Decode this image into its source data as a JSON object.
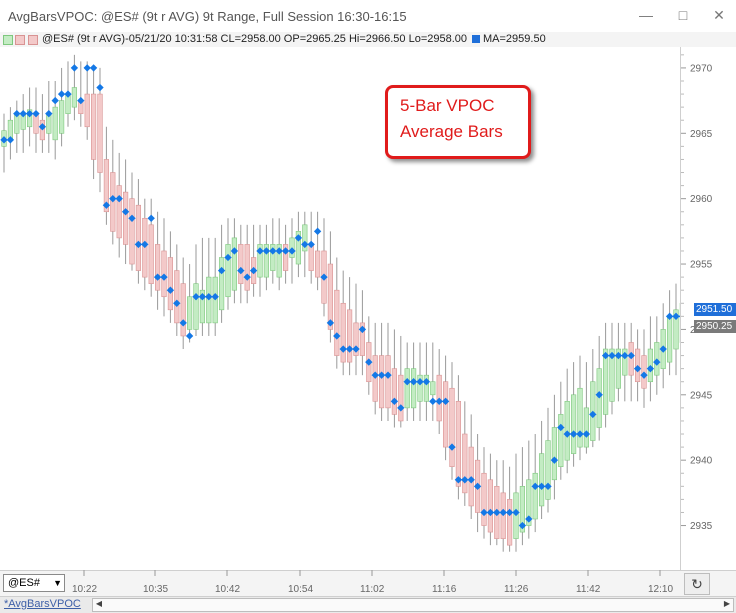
{
  "window": {
    "title": "AvgBarsVPOC: @ES# (9t r AVG) 9t Range, Full Session 16:30-16:15",
    "minimize_glyph": "—",
    "maximize_glyph": "□",
    "close_glyph": "✕"
  },
  "infobar": {
    "text": "@ES# (9t r AVG)-05/21/20 10:31:58 CL=2958.00 OP=2965.25 Hi=2966.50 Lo=2958.00",
    "ma_text": "MA=2959.50",
    "ma_color": "#1f6fd9"
  },
  "callout": {
    "line1": "5-Bar VPOC",
    "line2": "Average Bars",
    "color": "#e01b1b"
  },
  "price_labels": {
    "upper": "2951.50",
    "lower": "2950.25"
  },
  "bottom": {
    "symbol": "@ES#",
    "tab": "*AvgBarsVPOC",
    "refresh_glyph": "↻"
  },
  "colors": {
    "up_fill": "#c3ecc3",
    "up_border": "#7ec87e",
    "down_fill": "#f3c9c9",
    "down_border": "#d99393",
    "wick": "#999999",
    "vpoc": "#1478e6"
  },
  "chart_data": {
    "type": "candlestick",
    "title": "",
    "y_ticks": [
      2935,
      2940,
      2945,
      2950,
      2955,
      2960,
      2965,
      2970
    ],
    "ylim": [
      2931.6,
      2971.6
    ],
    "x_ticks": [
      "10:22",
      "10:35",
      "10:42",
      "10:54",
      "11:02",
      "11:16",
      "11:26",
      "11:42",
      "12:10"
    ],
    "bars": [
      {
        "o": 2964.0,
        "c": 2965.2,
        "h": 2966.5,
        "l": 2962.0,
        "v": 2964.5
      },
      {
        "o": 2964.5,
        "c": 2966.0,
        "h": 2967.0,
        "l": 2963.0,
        "v": 2964.5
      },
      {
        "o": 2965.0,
        "c": 2966.5,
        "h": 2967.5,
        "l": 2963.5,
        "v": 2966.5
      },
      {
        "o": 2965.3,
        "c": 2966.5,
        "h": 2968.0,
        "l": 2963.5,
        "v": 2966.5
      },
      {
        "o": 2965.5,
        "c": 2966.8,
        "h": 2968.5,
        "l": 2964.0,
        "v": 2966.5
      },
      {
        "o": 2966.5,
        "c": 2965.0,
        "h": 2968.5,
        "l": 2963.5,
        "v": 2966.5
      },
      {
        "o": 2966.0,
        "c": 2964.5,
        "h": 2968.0,
        "l": 2963.5,
        "v": 2965.5
      },
      {
        "o": 2965.0,
        "c": 2966.5,
        "h": 2969.0,
        "l": 2963.5,
        "v": 2966.5
      },
      {
        "o": 2964.5,
        "c": 2967.0,
        "h": 2969.0,
        "l": 2963.0,
        "v": 2967.5
      },
      {
        "o": 2965.0,
        "c": 2967.5,
        "h": 2970.0,
        "l": 2964.0,
        "v": 2968.0
      },
      {
        "o": 2966.5,
        "c": 2968.0,
        "h": 2970.5,
        "l": 2965.5,
        "v": 2968.0
      },
      {
        "o": 2967.0,
        "c": 2968.5,
        "h": 2971.0,
        "l": 2966.0,
        "v": 2970.0
      },
      {
        "o": 2967.5,
        "c": 2966.5,
        "h": 2970.5,
        "l": 2965.5,
        "v": 2967.5
      },
      {
        "o": 2968.0,
        "c": 2965.5,
        "h": 2970.5,
        "l": 2964.5,
        "v": 2970.0
      },
      {
        "o": 2968.0,
        "c": 2963.0,
        "h": 2970.0,
        "l": 2961.5,
        "v": 2970.0
      },
      {
        "o": 2968.0,
        "c": 2962.0,
        "h": 2970.0,
        "l": 2960.5,
        "v": 2968.5
      },
      {
        "o": 2963.0,
        "c": 2959.0,
        "h": 2965.5,
        "l": 2958.0,
        "v": 2959.5
      },
      {
        "o": 2962.0,
        "c": 2957.5,
        "h": 2964.5,
        "l": 2956.5,
        "v": 2960.0
      },
      {
        "o": 2961.0,
        "c": 2957.0,
        "h": 2963.5,
        "l": 2955.5,
        "v": 2960.0
      },
      {
        "o": 2960.5,
        "c": 2956.5,
        "h": 2963.0,
        "l": 2955.0,
        "v": 2959.0
      },
      {
        "o": 2960.0,
        "c": 2955.0,
        "h": 2962.0,
        "l": 2954.5,
        "v": 2958.5
      },
      {
        "o": 2959.5,
        "c": 2954.5,
        "h": 2961.5,
        "l": 2953.5,
        "v": 2956.5
      },
      {
        "o": 2958.5,
        "c": 2954.0,
        "h": 2960.0,
        "l": 2953.0,
        "v": 2956.5
      },
      {
        "o": 2958.0,
        "c": 2953.5,
        "h": 2960.0,
        "l": 2952.5,
        "v": 2958.5
      },
      {
        "o": 2956.5,
        "c": 2953.0,
        "h": 2959.0,
        "l": 2951.5,
        "v": 2954.0
      },
      {
        "o": 2956.0,
        "c": 2952.5,
        "h": 2958.5,
        "l": 2951.0,
        "v": 2954.0
      },
      {
        "o": 2955.5,
        "c": 2951.5,
        "h": 2957.5,
        "l": 2950.5,
        "v": 2953.0
      },
      {
        "o": 2954.5,
        "c": 2950.5,
        "h": 2956.5,
        "l": 2949.5,
        "v": 2952.0
      },
      {
        "o": 2953.5,
        "c": 2949.5,
        "h": 2955.5,
        "l": 2948.5,
        "v": 2950.5
      },
      {
        "o": 2950.0,
        "c": 2952.5,
        "h": 2955.0,
        "l": 2949.0,
        "v": 2949.5
      },
      {
        "o": 2950.0,
        "c": 2953.5,
        "h": 2956.5,
        "l": 2949.5,
        "v": 2952.5
      },
      {
        "o": 2950.5,
        "c": 2953.0,
        "h": 2957.0,
        "l": 2949.5,
        "v": 2952.5
      },
      {
        "o": 2950.5,
        "c": 2954.0,
        "h": 2957.0,
        "l": 2949.5,
        "v": 2952.5
      },
      {
        "o": 2950.5,
        "c": 2954.0,
        "h": 2957.0,
        "l": 2949.5,
        "v": 2952.5
      },
      {
        "o": 2951.5,
        "c": 2955.5,
        "h": 2958.0,
        "l": 2950.5,
        "v": 2954.5
      },
      {
        "o": 2952.5,
        "c": 2956.5,
        "h": 2958.5,
        "l": 2951.5,
        "v": 2955.5
      },
      {
        "o": 2953.0,
        "c": 2957.0,
        "h": 2958.5,
        "l": 2952.0,
        "v": 2956.0
      },
      {
        "o": 2956.5,
        "c": 2953.5,
        "h": 2958.0,
        "l": 2952.0,
        "v": 2954.5
      },
      {
        "o": 2956.5,
        "c": 2953.0,
        "h": 2958.0,
        "l": 2952.0,
        "v": 2954.0
      },
      {
        "o": 2955.5,
        "c": 2953.5,
        "h": 2958.0,
        "l": 2952.5,
        "v": 2954.5
      },
      {
        "o": 2954.0,
        "c": 2956.5,
        "h": 2958.0,
        "l": 2952.5,
        "v": 2956.0
      },
      {
        "o": 2954.0,
        "c": 2956.5,
        "h": 2958.0,
        "l": 2953.0,
        "v": 2956.0
      },
      {
        "o": 2954.5,
        "c": 2956.5,
        "h": 2958.5,
        "l": 2953.5,
        "v": 2956.0
      },
      {
        "o": 2954.0,
        "c": 2956.5,
        "h": 2958.5,
        "l": 2953.0,
        "v": 2956.0
      },
      {
        "o": 2956.5,
        "c": 2954.5,
        "h": 2958.0,
        "l": 2953.5,
        "v": 2956.0
      },
      {
        "o": 2955.5,
        "c": 2957.0,
        "h": 2958.5,
        "l": 2953.5,
        "v": 2956.0
      },
      {
        "o": 2955.0,
        "c": 2957.5,
        "h": 2959.0,
        "l": 2954.0,
        "v": 2957.0
      },
      {
        "o": 2956.0,
        "c": 2958.0,
        "h": 2959.0,
        "l": 2954.0,
        "v": 2956.5
      },
      {
        "o": 2956.5,
        "c": 2954.5,
        "h": 2959.0,
        "l": 2953.5,
        "v": 2956.5
      },
      {
        "o": 2956.0,
        "c": 2954.0,
        "h": 2959.0,
        "l": 2953.0,
        "v": 2957.5
      },
      {
        "o": 2956.0,
        "c": 2952.0,
        "h": 2958.5,
        "l": 2951.0,
        "v": 2954.0
      },
      {
        "o": 2955.0,
        "c": 2950.0,
        "h": 2957.5,
        "l": 2949.0,
        "v": 2950.5
      },
      {
        "o": 2953.0,
        "c": 2948.0,
        "h": 2955.5,
        "l": 2947.0,
        "v": 2949.5
      },
      {
        "o": 2952.0,
        "c": 2947.5,
        "h": 2954.5,
        "l": 2946.5,
        "v": 2948.5
      },
      {
        "o": 2951.5,
        "c": 2947.5,
        "h": 2954.0,
        "l": 2946.5,
        "v": 2948.5
      },
      {
        "o": 2950.5,
        "c": 2948.0,
        "h": 2953.5,
        "l": 2946.5,
        "v": 2948.5
      },
      {
        "o": 2950.5,
        "c": 2948.0,
        "h": 2953.0,
        "l": 2946.5,
        "v": 2950.0
      },
      {
        "o": 2949.0,
        "c": 2946.0,
        "h": 2951.0,
        "l": 2945.0,
        "v": 2947.5
      },
      {
        "o": 2948.0,
        "c": 2944.5,
        "h": 2950.5,
        "l": 2943.5,
        "v": 2946.5
      },
      {
        "o": 2948.0,
        "c": 2944.0,
        "h": 2950.5,
        "l": 2943.0,
        "v": 2946.5
      },
      {
        "o": 2948.0,
        "c": 2944.0,
        "h": 2950.5,
        "l": 2943.0,
        "v": 2946.5
      },
      {
        "o": 2947.0,
        "c": 2943.5,
        "h": 2950.0,
        "l": 2942.5,
        "v": 2944.5
      },
      {
        "o": 2946.5,
        "c": 2943.0,
        "h": 2949.5,
        "l": 2942.5,
        "v": 2944.0
      },
      {
        "o": 2944.0,
        "c": 2947.0,
        "h": 2949.0,
        "l": 2943.0,
        "v": 2946.0
      },
      {
        "o": 2944.0,
        "c": 2947.0,
        "h": 2949.0,
        "l": 2943.0,
        "v": 2946.0
      },
      {
        "o": 2944.5,
        "c": 2946.5,
        "h": 2949.0,
        "l": 2943.0,
        "v": 2946.0
      },
      {
        "o": 2944.5,
        "c": 2946.5,
        "h": 2949.0,
        "l": 2943.0,
        "v": 2946.0
      },
      {
        "o": 2945.0,
        "c": 2946.0,
        "h": 2949.0,
        "l": 2943.0,
        "v": 2944.5
      },
      {
        "o": 2946.5,
        "c": 2943.0,
        "h": 2948.5,
        "l": 2942.0,
        "v": 2944.5
      },
      {
        "o": 2946.0,
        "c": 2941.0,
        "h": 2948.0,
        "l": 2940.0,
        "v": 2944.5
      },
      {
        "o": 2945.5,
        "c": 2939.5,
        "h": 2947.5,
        "l": 2938.5,
        "v": 2941.0
      },
      {
        "o": 2944.5,
        "c": 2938.0,
        "h": 2946.5,
        "l": 2937.0,
        "v": 2938.5
      },
      {
        "o": 2942.0,
        "c": 2937.5,
        "h": 2944.5,
        "l": 2936.5,
        "v": 2938.5
      },
      {
        "o": 2941.0,
        "c": 2936.5,
        "h": 2943.5,
        "l": 2935.5,
        "v": 2938.5
      },
      {
        "o": 2940.0,
        "c": 2936.0,
        "h": 2942.0,
        "l": 2934.5,
        "v": 2938.0
      },
      {
        "o": 2939.0,
        "c": 2935.0,
        "h": 2941.0,
        "l": 2934.0,
        "v": 2936.0
      },
      {
        "o": 2938.5,
        "c": 2934.5,
        "h": 2940.5,
        "l": 2933.5,
        "v": 2936.0
      },
      {
        "o": 2938.0,
        "c": 2934.0,
        "h": 2940.0,
        "l": 2933.5,
        "v": 2936.0
      },
      {
        "o": 2937.5,
        "c": 2934.0,
        "h": 2940.0,
        "l": 2933.0,
        "v": 2936.0
      },
      {
        "o": 2937.0,
        "c": 2933.5,
        "h": 2939.5,
        "l": 2933.0,
        "v": 2936.0
      },
      {
        "o": 2934.0,
        "c": 2937.5,
        "h": 2940.5,
        "l": 2933.0,
        "v": 2936.0
      },
      {
        "o": 2934.5,
        "c": 2938.0,
        "h": 2941.0,
        "l": 2933.5,
        "v": 2935.0
      },
      {
        "o": 2935.0,
        "c": 2938.5,
        "h": 2941.5,
        "l": 2934.0,
        "v": 2935.5
      },
      {
        "o": 2935.5,
        "c": 2939.0,
        "h": 2942.0,
        "l": 2934.5,
        "v": 2938.0
      },
      {
        "o": 2936.5,
        "c": 2940.5,
        "h": 2943.0,
        "l": 2935.5,
        "v": 2938.0
      },
      {
        "o": 2937.0,
        "c": 2941.5,
        "h": 2944.0,
        "l": 2936.0,
        "v": 2938.0
      },
      {
        "o": 2938.5,
        "c": 2942.5,
        "h": 2945.0,
        "l": 2937.0,
        "v": 2940.0
      },
      {
        "o": 2939.5,
        "c": 2943.5,
        "h": 2946.0,
        "l": 2938.5,
        "v": 2942.5
      },
      {
        "o": 2940.0,
        "c": 2944.5,
        "h": 2947.0,
        "l": 2939.0,
        "v": 2942.0
      },
      {
        "o": 2940.5,
        "c": 2945.0,
        "h": 2947.5,
        "l": 2939.5,
        "v": 2942.0
      },
      {
        "o": 2941.0,
        "c": 2945.5,
        "h": 2948.0,
        "l": 2940.0,
        "v": 2942.0
      },
      {
        "o": 2941.0,
        "c": 2944.0,
        "h": 2947.5,
        "l": 2940.5,
        "v": 2942.0
      },
      {
        "o": 2941.5,
        "c": 2946.0,
        "h": 2948.5,
        "l": 2941.0,
        "v": 2943.5
      },
      {
        "o": 2942.5,
        "c": 2947.0,
        "h": 2949.5,
        "l": 2941.5,
        "v": 2945.0
      },
      {
        "o": 2943.5,
        "c": 2948.5,
        "h": 2950.5,
        "l": 2942.5,
        "v": 2948.0
      },
      {
        "o": 2944.5,
        "c": 2948.5,
        "h": 2950.5,
        "l": 2943.5,
        "v": 2948.0
      },
      {
        "o": 2945.5,
        "c": 2948.5,
        "h": 2950.5,
        "l": 2944.5,
        "v": 2948.0
      },
      {
        "o": 2946.5,
        "c": 2948.5,
        "h": 2950.5,
        "l": 2944.5,
        "v": 2948.0
      },
      {
        "o": 2949.0,
        "c": 2946.5,
        "h": 2950.5,
        "l": 2944.5,
        "v": 2948.0
      },
      {
        "o": 2948.5,
        "c": 2946.0,
        "h": 2950.0,
        "l": 2944.5,
        "v": 2947.0
      },
      {
        "o": 2948.0,
        "c": 2945.5,
        "h": 2950.0,
        "l": 2944.0,
        "v": 2946.5
      },
      {
        "o": 2946.0,
        "c": 2948.5,
        "h": 2951.0,
        "l": 2944.5,
        "v": 2947.0
      },
      {
        "o": 2946.5,
        "c": 2949.0,
        "h": 2951.0,
        "l": 2945.0,
        "v": 2947.5
      },
      {
        "o": 2947.0,
        "c": 2950.0,
        "h": 2952.0,
        "l": 2945.5,
        "v": 2948.5
      },
      {
        "o": 2947.5,
        "c": 2951.0,
        "h": 2953.0,
        "l": 2946.5,
        "v": 2951.0
      },
      {
        "o": 2948.5,
        "c": 2951.5,
        "h": 2953.5,
        "l": 2946.5,
        "v": 2951.0
      },
      {
        "o": 2949.0,
        "c": 2952.0,
        "h": 2954.0,
        "l": 2947.0,
        "v": 2951.0
      },
      {
        "o": 2949.5,
        "c": 2952.0,
        "h": 2954.0,
        "l": 2947.5,
        "v": 2951.0
      },
      {
        "o": 2951.5,
        "c": 2950.2,
        "h": 2954.0,
        "l": 2949.0,
        "v": 2951.0
      }
    ]
  }
}
